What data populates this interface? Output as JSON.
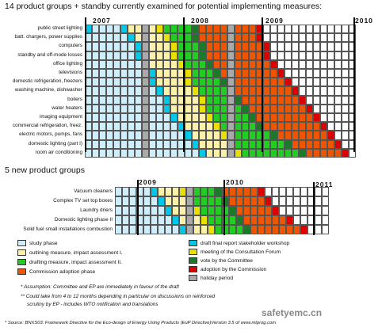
{
  "header1": "14 product groups + standby currently examined for potential implementing measures:",
  "header2": "5 new product groups",
  "years1": [
    "2007",
    "2008",
    "2009",
    "2010"
  ],
  "years2": [
    "2009",
    "2010",
    "2011"
  ],
  "groups1": [
    "public street lighting",
    "batt. chargers, power supplies",
    "computers",
    "standby and off-mode losses",
    "office lighting",
    "televisions",
    "domestic refrigeration, freezers",
    "washing machine, dishwasher",
    "boilers",
    "water heaters",
    "imaging equipment",
    "commercial refrigeration, freez.",
    "electric motors, pumps, fans",
    "domestic lighting (part I)",
    "room air conditioning"
  ],
  "groups2": [
    "Vacuum cleaners",
    "Complex TV set top boxes",
    "Laundry driers",
    "Domestic lighting phase II",
    "Solid fuel small installations combustion"
  ],
  "stars": "**",
  "legend": [
    {
      "key": "study",
      "text": "study phase",
      "color": "#cdeefa"
    },
    {
      "key": "draft_final",
      "text": "draft final report stakeholder workshop",
      "color": "#00c8e8"
    },
    {
      "key": "outlining",
      "text": "outlining measure, impact assessment I.",
      "color": "#fdf0a8"
    },
    {
      "key": "consult",
      "text": "meeting of the Consultation Forum",
      "color": "#e8e000"
    },
    {
      "key": "drafting",
      "text": "drafting measure, impact assessment II.",
      "color": "#22cc22"
    },
    {
      "key": "vote",
      "text": "vote by the Committee",
      "color": "#1a7a2a"
    },
    {
      "key": "commission",
      "text": "Commission adoption phase",
      "color": "#ee5500"
    },
    {
      "key": "adoption",
      "text": "adoption by the Commission",
      "color": "#dd0000"
    },
    {
      "key": "holiday",
      "text": "holiday period",
      "color": "#aaaaaa"
    }
  ],
  "note1": "* Assumption: Committee and EP are immediately in favour of the draft",
  "note2a": "** Could take from 4 to 12 months depending in particular on discussions on reinforced",
  "note2b": "scrutiny by EP - includes WTO notification and translations",
  "source": "* Source: BNXS03: Framework Directive for the Eco-design of Energy Using Products (EuP Directive)Version 3.5 of www.mtprog.com",
  "watermark": "safetyemc.cn",
  "colors": {
    "white": "#ffffff",
    "study": "#cdeefa",
    "draft_final": "#00c8e8",
    "outlining": "#fdf0a8",
    "consult": "#e8e000",
    "drafting": "#22cc22",
    "vote": "#1a7a2a",
    "commission": "#ee5500",
    "adoption": "#dd0000",
    "holiday": "#aaaaaa"
  }
}
